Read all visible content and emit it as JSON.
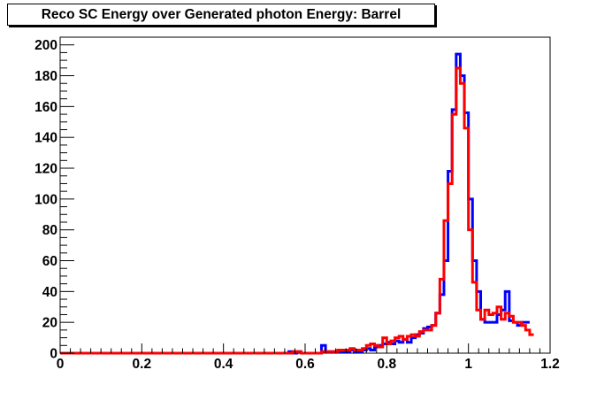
{
  "chart_data": {
    "type": "line",
    "title": "Reco SC Energy over Generated photon Energy: Barrel",
    "xlabel": "",
    "ylabel": "",
    "xlim": [
      0,
      1.2
    ],
    "ylim": [
      0,
      205
    ],
    "grid": false,
    "bin_width": 0.01,
    "x_ticks": [
      {
        "value": 0,
        "label": "0"
      },
      {
        "value": 0.2,
        "label": "0.2"
      },
      {
        "value": 0.4,
        "label": "0.4"
      },
      {
        "value": 0.6,
        "label": "0.6"
      },
      {
        "value": 0.8,
        "label": "0.8"
      },
      {
        "value": 1.0,
        "label": "1"
      },
      {
        "value": 1.2,
        "label": "1.2"
      }
    ],
    "y_ticks": [
      {
        "value": 0,
        "label": "0"
      },
      {
        "value": 20,
        "label": "20"
      },
      {
        "value": 40,
        "label": "40"
      },
      {
        "value": 60,
        "label": "60"
      },
      {
        "value": 80,
        "label": "80"
      },
      {
        "value": 100,
        "label": "100"
      },
      {
        "value": 120,
        "label": "120"
      },
      {
        "value": 140,
        "label": "140"
      },
      {
        "value": 160,
        "label": "160"
      },
      {
        "value": 180,
        "label": "180"
      },
      {
        "value": 200,
        "label": "200"
      }
    ],
    "series": [
      {
        "color": "#0000ff",
        "values": [
          0,
          0,
          0,
          0,
          0,
          0,
          0,
          0,
          0,
          0,
          0,
          0,
          0,
          0,
          0,
          0,
          0,
          0,
          0,
          0,
          0,
          0,
          0,
          0,
          0,
          0,
          0,
          0,
          0,
          0,
          0,
          0,
          0,
          0,
          0,
          0,
          0,
          0,
          0,
          0,
          0,
          0,
          0,
          0,
          0,
          0,
          0,
          0,
          0,
          0,
          0,
          0,
          0,
          0,
          0,
          0,
          1,
          0,
          1,
          0,
          0,
          0,
          0,
          0,
          5,
          1,
          1,
          1,
          1,
          1,
          1,
          2,
          1,
          1,
          2,
          3,
          2,
          4,
          5,
          6,
          7,
          6,
          8,
          7,
          9,
          7,
          10,
          12,
          13,
          16,
          17,
          18,
          26,
          38,
          60,
          118,
          158,
          194,
          180,
          156,
          100,
          60,
          40,
          22,
          20,
          20,
          20,
          25,
          28,
          40,
          21,
          20,
          18,
          20,
          20
        ]
      },
      {
        "color": "#ff0000",
        "values": [
          0,
          0,
          0,
          0,
          0,
          0,
          0,
          0,
          0,
          0,
          0,
          0,
          0,
          0,
          0,
          0,
          0,
          0,
          0,
          0,
          0,
          0,
          0,
          0,
          0,
          0,
          0,
          0,
          0,
          0,
          0,
          0,
          0,
          0,
          0,
          0,
          0,
          0,
          0,
          0,
          0,
          0,
          0,
          0,
          0,
          0,
          0,
          0,
          0,
          0,
          0,
          0,
          0,
          0,
          0,
          0,
          0,
          1,
          1,
          0,
          0,
          0,
          0,
          0,
          1,
          1,
          1,
          1,
          2,
          2,
          2,
          3,
          2,
          2,
          3,
          5,
          6,
          5,
          4,
          10,
          6,
          8,
          10,
          11,
          9,
          11,
          12,
          11,
          14,
          15,
          15,
          18,
          26,
          48,
          86,
          110,
          155,
          185,
          175,
          146,
          80,
          46,
          28,
          22,
          28,
          25,
          26,
          30,
          22,
          26,
          24,
          20,
          20,
          18,
          15,
          12
        ]
      }
    ]
  }
}
